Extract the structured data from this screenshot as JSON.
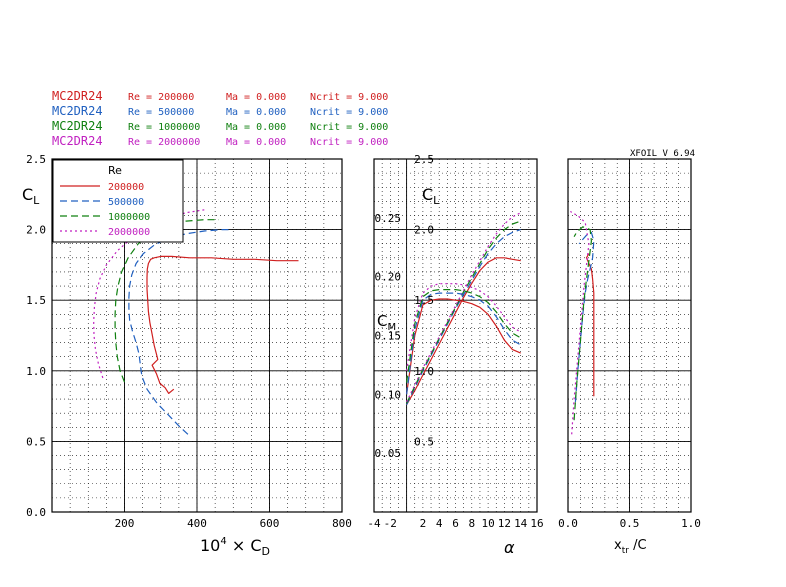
{
  "header": {
    "lines": [
      {
        "airfoil": "MC2DR24",
        "re": "Re = 200000",
        "ma": "Ma = 0.000",
        "ncrit": "Ncrit = 9.000",
        "color": "#d02020"
      },
      {
        "airfoil": "MC2DR24",
        "re": "Re = 500000",
        "ma": "Ma = 0.000",
        "ncrit": "Ncrit = 9.000",
        "color": "#2060c0"
      },
      {
        "airfoil": "MC2DR24",
        "re": "Re = 1000000",
        "ma": "Ma = 0.000",
        "ncrit": "Ncrit = 9.000",
        "color": "#108010"
      },
      {
        "airfoil": "MC2DR24",
        "re": "Re = 2000000",
        "ma": "Ma = 0.000",
        "ncrit": "Ncrit = 9.000",
        "color": "#c020c0"
      }
    ],
    "version": "XFOIL V 6.94"
  },
  "legend": {
    "title": "Re",
    "entries": [
      "200000",
      "500000",
      "1000000",
      "2000000"
    ],
    "placement": "top-left of drag polar"
  },
  "chart_data": [
    {
      "type": "line",
      "panel": "drag-polar",
      "xlabel": "10⁴ × C_D",
      "ylabel": "C_L",
      "xlim": [
        0,
        800
      ],
      "ylim": [
        0,
        2.5
      ],
      "x_tick_labels": [
        "200",
        "400",
        "600",
        "800"
      ],
      "y_tick_labels": [
        "0.0",
        "0.5",
        "1.0",
        "1.5",
        "2.0",
        "2.5"
      ],
      "grid": true,
      "series": [
        {
          "name": "200000",
          "color": "#d02020",
          "dash": "solid",
          "x": [
            336,
            322,
            312,
            298,
            288,
            276,
            292,
            288,
            282,
            276,
            270,
            266,
            264,
            262,
            262,
            263,
            266,
            272,
            282,
            300,
            330,
            380,
            440,
            500,
            560,
            620,
            680
          ],
          "y": [
            0.87,
            0.84,
            0.88,
            0.91,
            0.98,
            1.04,
            1.08,
            1.12,
            1.18,
            1.26,
            1.34,
            1.42,
            1.5,
            1.58,
            1.66,
            1.72,
            1.76,
            1.79,
            1.8,
            1.81,
            1.81,
            1.8,
            1.8,
            1.79,
            1.79,
            1.78,
            1.78
          ]
        },
        {
          "name": "500000",
          "color": "#2060c0",
          "dash": "dashed",
          "x": [
            375,
            350,
            320,
            290,
            262,
            248,
            244,
            240,
            232,
            222,
            214,
            212,
            212,
            214,
            220,
            232,
            252,
            282,
            322,
            370,
            420,
            470,
            495
          ],
          "y": [
            0.55,
            0.61,
            0.69,
            0.77,
            0.87,
            0.96,
            1.04,
            1.12,
            1.2,
            1.28,
            1.36,
            1.44,
            1.52,
            1.6,
            1.68,
            1.76,
            1.83,
            1.89,
            1.94,
            1.97,
            1.99,
            2.0,
            2.0
          ]
        },
        {
          "name": "1000000",
          "color": "#108010",
          "dash": "dashed",
          "x": [
            200,
            188,
            180,
            176,
            174,
            174,
            176,
            182,
            192,
            210,
            238,
            275,
            320,
            370,
            420,
            460
          ],
          "y": [
            0.92,
            1.0,
            1.1,
            1.2,
            1.3,
            1.4,
            1.5,
            1.6,
            1.7,
            1.8,
            1.9,
            1.97,
            2.03,
            2.06,
            2.07,
            2.07
          ]
        },
        {
          "name": "2000000",
          "color": "#c020c0",
          "dash": "dotted",
          "x": [
            140,
            128,
            120,
            116,
            115,
            117,
            122,
            132,
            150,
            180,
            220,
            270,
            320,
            370,
            420
          ],
          "y": [
            0.95,
            1.05,
            1.15,
            1.25,
            1.35,
            1.45,
            1.55,
            1.65,
            1.75,
            1.85,
            1.94,
            2.02,
            2.08,
            2.12,
            2.14
          ]
        }
      ]
    },
    {
      "type": "line",
      "panel": "lift-curve",
      "xlabel": "α",
      "ylabel": "C_L",
      "xlim": [
        -4,
        16
      ],
      "ylim": [
        0,
        2.5
      ],
      "x_tick_labels": [
        "-4",
        "-2",
        "2",
        "4",
        "6",
        "8",
        "10",
        "12",
        "14",
        "16"
      ],
      "y_tick_labels": [
        "0.5",
        "1.0",
        "1.5",
        "2.0",
        "2.5"
      ],
      "grid": true,
      "series": [
        {
          "name": "200000",
          "color": "#d02020",
          "dash": "solid",
          "x": [
            0,
            1,
            2,
            3,
            4,
            5,
            6,
            7,
            8,
            9,
            10,
            11,
            12,
            13,
            14
          ],
          "y": [
            0.76,
            0.86,
            0.97,
            1.08,
            1.19,
            1.3,
            1.41,
            1.52,
            1.62,
            1.71,
            1.77,
            1.8,
            1.8,
            1.79,
            1.78
          ]
        },
        {
          "name": "500000",
          "color": "#2060c0",
          "dash": "dashed",
          "x": [
            0,
            1,
            2,
            3,
            4,
            5,
            6,
            7,
            8,
            9,
            10,
            11,
            12,
            13,
            14
          ],
          "y": [
            0.76,
            0.88,
            1.0,
            1.11,
            1.22,
            1.33,
            1.44,
            1.54,
            1.64,
            1.74,
            1.83,
            1.9,
            1.95,
            1.98,
            2.0
          ]
        },
        {
          "name": "1000000",
          "color": "#108010",
          "dash": "dashed",
          "x": [
            0,
            1,
            2,
            3,
            4,
            5,
            6,
            7,
            8,
            9,
            10,
            11,
            12,
            13,
            14
          ],
          "y": [
            0.77,
            0.89,
            1.01,
            1.12,
            1.23,
            1.34,
            1.45,
            1.56,
            1.66,
            1.76,
            1.86,
            1.94,
            2.0,
            2.04,
            2.06
          ]
        },
        {
          "name": "2000000",
          "color": "#c020c0",
          "dash": "dotted",
          "x": [
            0,
            1,
            2,
            3,
            4,
            5,
            6,
            7,
            8,
            9,
            10,
            11,
            12,
            13,
            14
          ],
          "y": [
            0.78,
            0.9,
            1.02,
            1.13,
            1.24,
            1.35,
            1.46,
            1.57,
            1.68,
            1.78,
            1.88,
            1.97,
            2.04,
            2.09,
            2.12
          ]
        }
      ]
    },
    {
      "type": "line",
      "panel": "moment-curve",
      "xlabel": "α",
      "ylabel": "C_M",
      "xlim": [
        -4,
        16
      ],
      "ylim": [
        0,
        0.3
      ],
      "y_tick_labels": [
        "0.05",
        "0.10",
        "0.15",
        "0.20",
        "0.25"
      ],
      "grid": true,
      "series": [
        {
          "name": "200000",
          "color": "#d02020",
          "dash": "solid",
          "x": [
            0,
            1,
            2,
            3,
            4,
            5,
            6,
            7,
            8,
            9,
            10,
            11,
            12,
            13,
            14
          ],
          "y": [
            0.1,
            0.15,
            0.176,
            0.18,
            0.181,
            0.181,
            0.18,
            0.179,
            0.177,
            0.174,
            0.168,
            0.158,
            0.146,
            0.138,
            0.135
          ]
        },
        {
          "name": "500000",
          "color": "#2060c0",
          "dash": "dashed",
          "x": [
            0,
            1,
            2,
            3,
            4,
            5,
            6,
            7,
            8,
            9,
            10,
            11,
            12,
            13,
            14
          ],
          "y": [
            0.1,
            0.155,
            0.18,
            0.185,
            0.186,
            0.186,
            0.186,
            0.185,
            0.183,
            0.18,
            0.175,
            0.166,
            0.155,
            0.146,
            0.142
          ]
        },
        {
          "name": "1000000",
          "color": "#108010",
          "dash": "dashed",
          "x": [
            0,
            1,
            2,
            3,
            4,
            5,
            6,
            7,
            8,
            9,
            10,
            11,
            12,
            13,
            14
          ],
          "y": [
            0.11,
            0.16,
            0.183,
            0.188,
            0.189,
            0.189,
            0.189,
            0.188,
            0.186,
            0.183,
            0.178,
            0.17,
            0.16,
            0.152,
            0.148
          ]
        },
        {
          "name": "2000000",
          "color": "#c020c0",
          "dash": "dotted",
          "x": [
            0,
            1,
            2,
            3,
            4,
            5,
            6,
            7,
            8,
            9,
            10,
            11,
            12,
            13,
            14
          ],
          "y": [
            0.12,
            0.165,
            0.186,
            0.192,
            0.194,
            0.194,
            0.194,
            0.193,
            0.191,
            0.188,
            0.183,
            0.175,
            0.166,
            0.157,
            0.153
          ]
        }
      ]
    },
    {
      "type": "line",
      "panel": "transition",
      "xlabel": "x_tr /C",
      "ylabel": "",
      "xlim": [
        0,
        1
      ],
      "ylim": [
        0,
        2.5
      ],
      "x_tick_labels": [
        "0.0",
        "0.5",
        "1.0"
      ],
      "grid": true,
      "series": [
        {
          "name": "200000",
          "color": "#d02020",
          "dash": "solid",
          "x": [
            0.21,
            0.21,
            0.21,
            0.21,
            0.21,
            0.2,
            0.19,
            0.17,
            0.15,
            0.17
          ],
          "y": [
            0.82,
            1.0,
            1.2,
            1.4,
            1.55,
            1.65,
            1.72,
            1.76,
            1.8,
            1.83
          ]
        },
        {
          "name": "500000",
          "color": "#2060c0",
          "dash": "dashed",
          "x": [
            0.06,
            0.08,
            0.1,
            0.12,
            0.14,
            0.16,
            0.18,
            0.2,
            0.21,
            0.19,
            0.15,
            0.11,
            0.09
          ],
          "y": [
            0.78,
            1.0,
            1.2,
            1.4,
            1.55,
            1.65,
            1.72,
            1.8,
            1.92,
            1.98,
            1.96,
            1.92,
            1.9
          ]
        },
        {
          "name": "1000000",
          "color": "#108010",
          "dash": "dashed",
          "x": [
            0.05,
            0.07,
            0.09,
            0.11,
            0.13,
            0.15,
            0.17,
            0.19,
            0.18,
            0.12,
            0.07,
            0.05
          ],
          "y": [
            0.65,
            0.9,
            1.1,
            1.3,
            1.5,
            1.65,
            1.78,
            1.92,
            2.0,
            2.02,
            1.98,
            1.95
          ]
        },
        {
          "name": "2000000",
          "color": "#c020c0",
          "dash": "dotted",
          "x": [
            0.03,
            0.05,
            0.07,
            0.09,
            0.11,
            0.13,
            0.15,
            0.17,
            0.14,
            0.08,
            0.03,
            0.02
          ],
          "y": [
            0.55,
            0.8,
            1.0,
            1.2,
            1.4,
            1.6,
            1.75,
            1.9,
            2.05,
            2.1,
            2.12,
            2.13
          ]
        }
      ]
    }
  ]
}
